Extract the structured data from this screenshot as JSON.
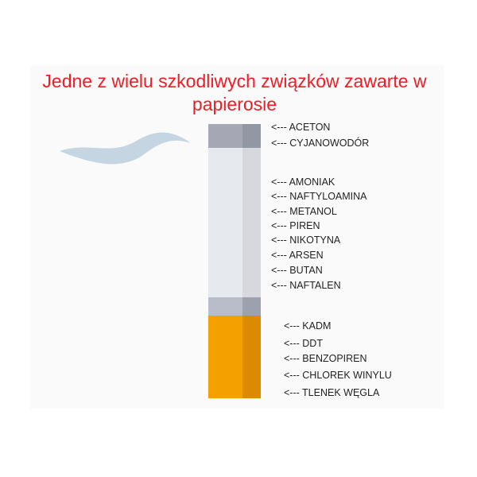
{
  "title": "Jedne z wielu szkodliwych związków zawarte w papierosie",
  "arrow": "<---",
  "colors": {
    "title": "#ee1c24",
    "filter": "#f4a100",
    "filter_shade": "#dc8a00",
    "paper": "#e6e9ee",
    "ash": "#a5a7b5",
    "smoke": "#c5d6e2"
  },
  "groups": {
    "ash": [
      "ACETON",
      "CYJANOWODÓR"
    ],
    "paper": [
      "AMONIAK",
      "NAFTYLOAMINA",
      "METANOL",
      "PIREN",
      "NIKOTYNA",
      "ARSEN",
      "BUTAN",
      "NAFTALEN"
    ],
    "filter": [
      "KADM",
      "DDT",
      "BENZOPIREN",
      "CHLOREK WINYLU",
      "TLENEK WĘGLA"
    ]
  }
}
